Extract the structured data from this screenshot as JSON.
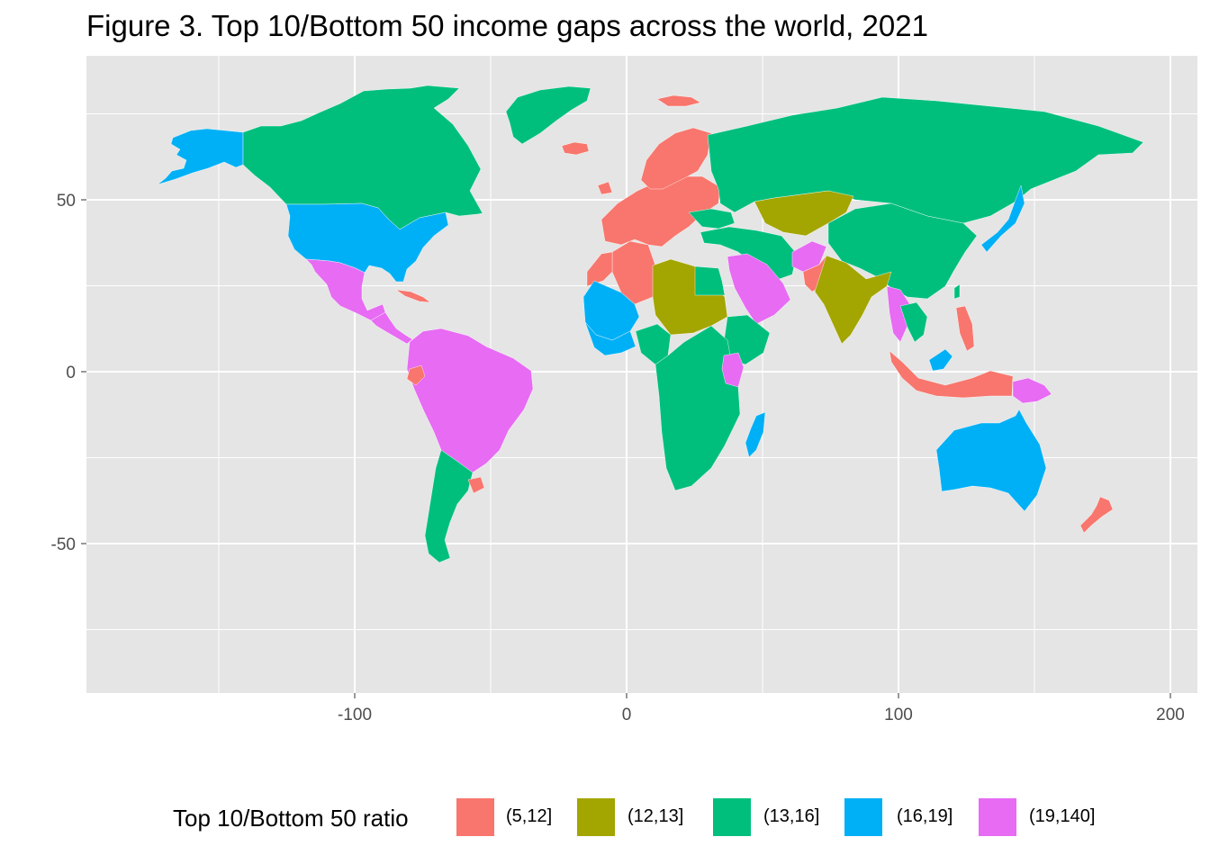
{
  "title": "Figure 3. Top 10/Bottom 50 income gaps across the world, 2021",
  "map": {
    "projection": "equirectangular (longitude / latitude)",
    "x_ticks": [
      -100,
      0,
      100,
      200
    ],
    "y_ticks": [
      50,
      0,
      -50
    ],
    "xlim": [
      -200,
      210
    ],
    "ylim": [
      -93,
      92
    ],
    "background": "#e5e5e5",
    "grid": "white"
  },
  "legend": {
    "title": "Top 10/Bottom 50 ratio",
    "position": "bottom",
    "items": [
      {
        "label": "(5,12]",
        "color": "#f8766d"
      },
      {
        "label": "(12,13]",
        "color": "#a3a500"
      },
      {
        "label": "(13,16]",
        "color": "#00bf7d"
      },
      {
        "label": "(16,19]",
        "color": "#00b0f6"
      },
      {
        "label": "(19,140]",
        "color": "#e76bf3"
      }
    ]
  },
  "regions": [
    {
      "name": "Alaska (USA)",
      "bin": 3
    },
    {
      "name": "Canada",
      "bin": 2
    },
    {
      "name": "United States",
      "bin": 3
    },
    {
      "name": "Mexico",
      "bin": 4
    },
    {
      "name": "Central America",
      "bin": 4
    },
    {
      "name": "Cuba",
      "bin": 0
    },
    {
      "name": "Greenland (Denmark)",
      "bin": 2
    },
    {
      "name": "Iceland",
      "bin": 0
    },
    {
      "name": "Svalbard",
      "bin": 0
    },
    {
      "name": "South America (Brazil, Colombia, Peru, Bolivia...)",
      "bin": 4
    },
    {
      "name": "Ecuador",
      "bin": 0
    },
    {
      "name": "Argentina / Chile",
      "bin": 2
    },
    {
      "name": "Uruguay",
      "bin": 0
    },
    {
      "name": "Western Europe",
      "bin": 0
    },
    {
      "name": "Scandinavia",
      "bin": 0
    },
    {
      "name": "Ireland",
      "bin": 0
    },
    {
      "name": "Ukraine",
      "bin": 2
    },
    {
      "name": "Russia",
      "bin": 2
    },
    {
      "name": "Kazakhstan / Central Asia",
      "bin": 1
    },
    {
      "name": "China",
      "bin": 2
    },
    {
      "name": "Mongolia",
      "bin": 2
    },
    {
      "name": "Turkey / Iran",
      "bin": 4
    },
    {
      "name": "Saudi Arabia / Gulf",
      "bin": 4
    },
    {
      "name": "Afghanistan",
      "bin": 0
    },
    {
      "name": "Pakistan",
      "bin": 1
    },
    {
      "name": "India",
      "bin": 4
    },
    {
      "name": "Myanmar / Thailand",
      "bin": 2
    },
    {
      "name": "Laos / Vietnam",
      "bin": 3
    },
    {
      "name": "Japan",
      "bin": 2
    },
    {
      "name": "Taiwan",
      "bin": 0
    },
    {
      "name": "Philippines",
      "bin": 3
    },
    {
      "name": "Malaysia",
      "bin": 0
    },
    {
      "name": "Indonesia",
      "bin": 4
    },
    {
      "name": "Papua New Guinea",
      "bin": 3
    },
    {
      "name": "Australia",
      "bin": 0
    },
    {
      "name": "New Zealand",
      "bin": 0
    },
    {
      "name": "Algeria",
      "bin": 0
    },
    {
      "name": "Morocco",
      "bin": 3
    },
    {
      "name": "Mali / Mauritania / Niger",
      "bin": 1
    },
    {
      "name": "Libya / Chad / Sudan",
      "bin": 2
    },
    {
      "name": "Egypt",
      "bin": 3
    },
    {
      "name": "West Africa coast",
      "bin": 2
    },
    {
      "name": "Nigeria / Cameroon",
      "bin": 2
    },
    {
      "name": "Ethiopia / Somalia",
      "bin": 2
    },
    {
      "name": "Central & Southern Africa",
      "bin": 4
    },
    {
      "name": "Kenya / Tanzania",
      "bin": 3
    },
    {
      "name": "Madagascar",
      "bin": 4
    }
  ]
}
